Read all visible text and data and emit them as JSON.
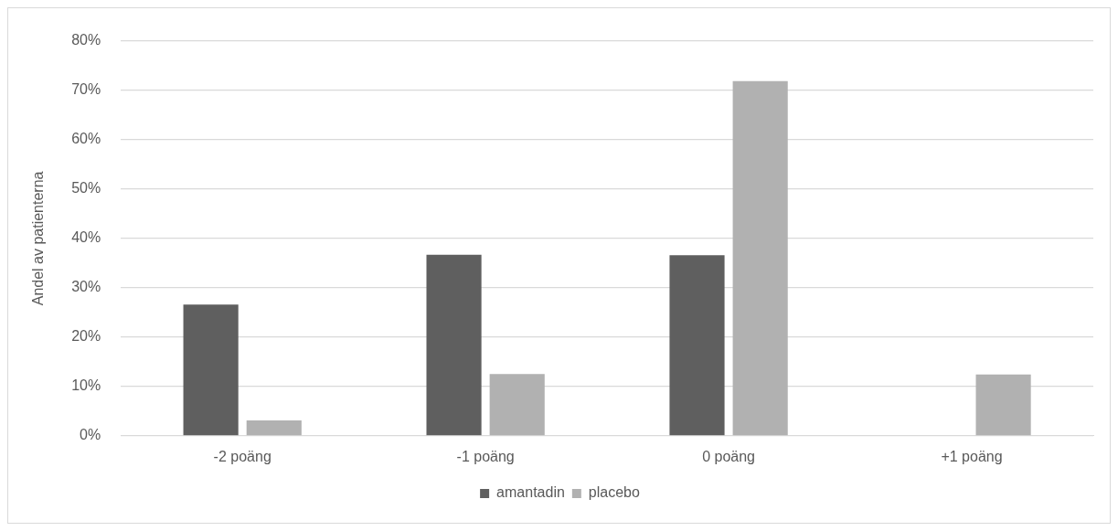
{
  "chart_data": {
    "type": "bar",
    "ylabel": "Andel av patienterna",
    "categories": [
      "-2 poäng",
      "-1 poäng",
      "0 poäng",
      "+1 poäng"
    ],
    "series": [
      {
        "name": "amantadin",
        "color": "#5f5f5f",
        "values": [
          26.6,
          36.7,
          36.6,
          0
        ]
      },
      {
        "name": "placebo",
        "color": "#b1b1b1",
        "values": [
          3.1,
          12.5,
          71.9,
          12.4
        ]
      }
    ],
    "ylim": [
      0,
      80
    ],
    "yticks": [
      {
        "value": 0,
        "label": "0%"
      },
      {
        "value": 10,
        "label": "10%"
      },
      {
        "value": 20,
        "label": "20%"
      },
      {
        "value": 30,
        "label": "30%"
      },
      {
        "value": 40,
        "label": "40%"
      },
      {
        "value": 50,
        "label": "50%"
      },
      {
        "value": 60,
        "label": "60%"
      },
      {
        "value": 70,
        "label": "70%"
      },
      {
        "value": 80,
        "label": "80%"
      }
    ],
    "grid": "y",
    "legend": "bottom"
  }
}
